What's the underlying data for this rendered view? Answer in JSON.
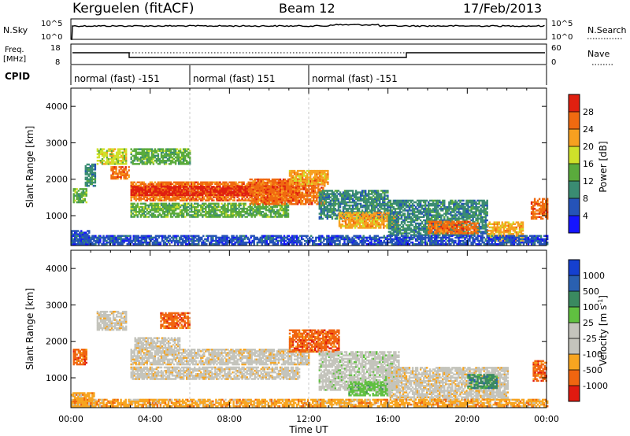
{
  "header": {
    "station": "Kerguelen (fitACF)",
    "beam": "Beam 12",
    "date": "17/Feb/2013"
  },
  "top_panels": {
    "nsky": {
      "label": "N.Sky",
      "ticks": [
        "10^5",
        "10^0"
      ],
      "right_ticks": [
        "10^5",
        "10^0"
      ],
      "right_label": "N.Search"
    },
    "freq": {
      "label": "Freq.",
      "unit": "[MHz]",
      "ticks": [
        "18",
        "8"
      ],
      "right_ticks": [
        "60",
        "0"
      ],
      "right_label": "Nave"
    },
    "cpid": {
      "label": "CPID",
      "segments": [
        {
          "start": 0,
          "end": 6,
          "text": "normal (fast) -151"
        },
        {
          "start": 6,
          "end": 12,
          "text": "normal (fast) 151"
        },
        {
          "start": 12,
          "end": 24,
          "text": "normal (fast) -151"
        }
      ]
    }
  },
  "chart_data": [
    {
      "type": "heatmap",
      "name": "power",
      "ylabel": "Slant Range [km]",
      "xlim": [
        0,
        24
      ],
      "ylim": [
        180,
        4500
      ],
      "yticks": [
        "1000",
        "2000",
        "3000",
        "4000"
      ],
      "colorbar": {
        "label": "Power [dB]",
        "ticks": [
          "4",
          "8",
          "12",
          "16",
          "20",
          "24",
          "28"
        ],
        "colors": [
          "#1515ff",
          "#2553b8",
          "#3a8c72",
          "#5aab3c",
          "#cfe12a",
          "#f7a020",
          "#f06a10",
          "#e02010"
        ]
      },
      "regions": [
        {
          "t0": 0.0,
          "t1": 0.9,
          "r0": 200,
          "r1": 600,
          "level": 1
        },
        {
          "t0": 0.1,
          "t1": 0.8,
          "r0": 1350,
          "r1": 1750,
          "level": 3
        },
        {
          "t0": 0.7,
          "t1": 1.2,
          "r0": 1800,
          "r1": 2400,
          "level": 2
        },
        {
          "t0": 1.3,
          "t1": 2.8,
          "r0": 2400,
          "r1": 2850,
          "level": 4
        },
        {
          "t0": 2.0,
          "t1": 2.9,
          "r0": 2000,
          "r1": 2350,
          "level": 6
        },
        {
          "t0": 3.0,
          "t1": 6.0,
          "r0": 2400,
          "r1": 2850,
          "level": 3
        },
        {
          "t0": 3.0,
          "t1": 11.5,
          "r0": 1400,
          "r1": 1900,
          "level": 6
        },
        {
          "t0": 3.0,
          "t1": 11.5,
          "r0": 1550,
          "r1": 1780,
          "level": 7
        },
        {
          "t0": 3.0,
          "t1": 11.0,
          "r0": 950,
          "r1": 1350,
          "level": 3
        },
        {
          "t0": 9.0,
          "t1": 12.8,
          "r0": 1300,
          "r1": 2000,
          "level": 6
        },
        {
          "t0": 11.0,
          "t1": 13.0,
          "r0": 1850,
          "r1": 2250,
          "level": 5
        },
        {
          "t0": 12.5,
          "t1": 16.0,
          "r0": 900,
          "r1": 1700,
          "level": 2
        },
        {
          "t0": 13.5,
          "t1": 16.5,
          "r0": 650,
          "r1": 1100,
          "level": 5
        },
        {
          "t0": 16.0,
          "t1": 21.0,
          "r0": 450,
          "r1": 1400,
          "level": 2
        },
        {
          "t0": 18.0,
          "t1": 20.5,
          "r0": 500,
          "r1": 850,
          "level": 6
        },
        {
          "t0": 21.0,
          "t1": 22.8,
          "r0": 300,
          "r1": 800,
          "level": 5
        },
        {
          "t0": 23.2,
          "t1": 24.0,
          "r0": 900,
          "r1": 1450,
          "level": 6
        },
        {
          "t0": 0.0,
          "t1": 24.0,
          "r0": 200,
          "r1": 450,
          "level": 1
        }
      ]
    },
    {
      "type": "heatmap",
      "name": "velocity",
      "ylabel": "Slant Range [km]",
      "xlabel": "Time UT",
      "xlim": [
        0,
        24
      ],
      "ylim": [
        180,
        4500
      ],
      "xticks": [
        "00:00",
        "04:00",
        "08:00",
        "12:00",
        "16:00",
        "20:00",
        "00:00"
      ],
      "yticks": [
        "1000",
        "2000",
        "3000",
        "4000"
      ],
      "colorbar": {
        "label": "Velocity [m s^-1]",
        "ticks": [
          "-1000",
          "-500",
          "-100",
          "-25",
          "25",
          "100",
          "500",
          "1000"
        ],
        "colors": [
          "#e01a10",
          "#f06510",
          "#f7a520",
          "#c4c4bc",
          "#c4c4bc",
          "#60c040",
          "#3a8a60",
          "#2a60b0",
          "#1540d0"
        ]
      },
      "regions": [
        {
          "t0": 0.0,
          "t1": 1.2,
          "r0": 200,
          "r1": 600,
          "level": 2
        },
        {
          "t0": 0.1,
          "t1": 0.8,
          "r0": 1350,
          "r1": 1800,
          "level": 1
        },
        {
          "t0": 1.3,
          "t1": 2.8,
          "r0": 2300,
          "r1": 2800,
          "level": 3
        },
        {
          "t0": 3.2,
          "t1": 5.5,
          "r0": 1800,
          "r1": 2100,
          "level": 3
        },
        {
          "t0": 3.0,
          "t1": 12.0,
          "r0": 1350,
          "r1": 1800,
          "level": 3
        },
        {
          "t0": 3.0,
          "t1": 11.5,
          "r0": 950,
          "r1": 1300,
          "level": 3
        },
        {
          "t0": 4.5,
          "t1": 6.0,
          "r0": 2350,
          "r1": 2800,
          "level": 1
        },
        {
          "t0": 11.0,
          "t1": 13.5,
          "r0": 1700,
          "r1": 2300,
          "level": 1
        },
        {
          "t0": 12.5,
          "t1": 16.5,
          "r0": 650,
          "r1": 1700,
          "level": 4
        },
        {
          "t0": 14.0,
          "t1": 16.0,
          "r0": 500,
          "r1": 900,
          "level": 5
        },
        {
          "t0": 16.0,
          "t1": 22.0,
          "r0": 400,
          "r1": 1300,
          "level": 3
        },
        {
          "t0": 20.0,
          "t1": 21.5,
          "r0": 700,
          "r1": 1100,
          "level": 6
        },
        {
          "t0": 23.3,
          "t1": 24.0,
          "r0": 900,
          "r1": 1450,
          "level": 1
        },
        {
          "t0": 0.0,
          "t1": 24.0,
          "r0": 200,
          "r1": 400,
          "level": 2
        }
      ]
    }
  ]
}
